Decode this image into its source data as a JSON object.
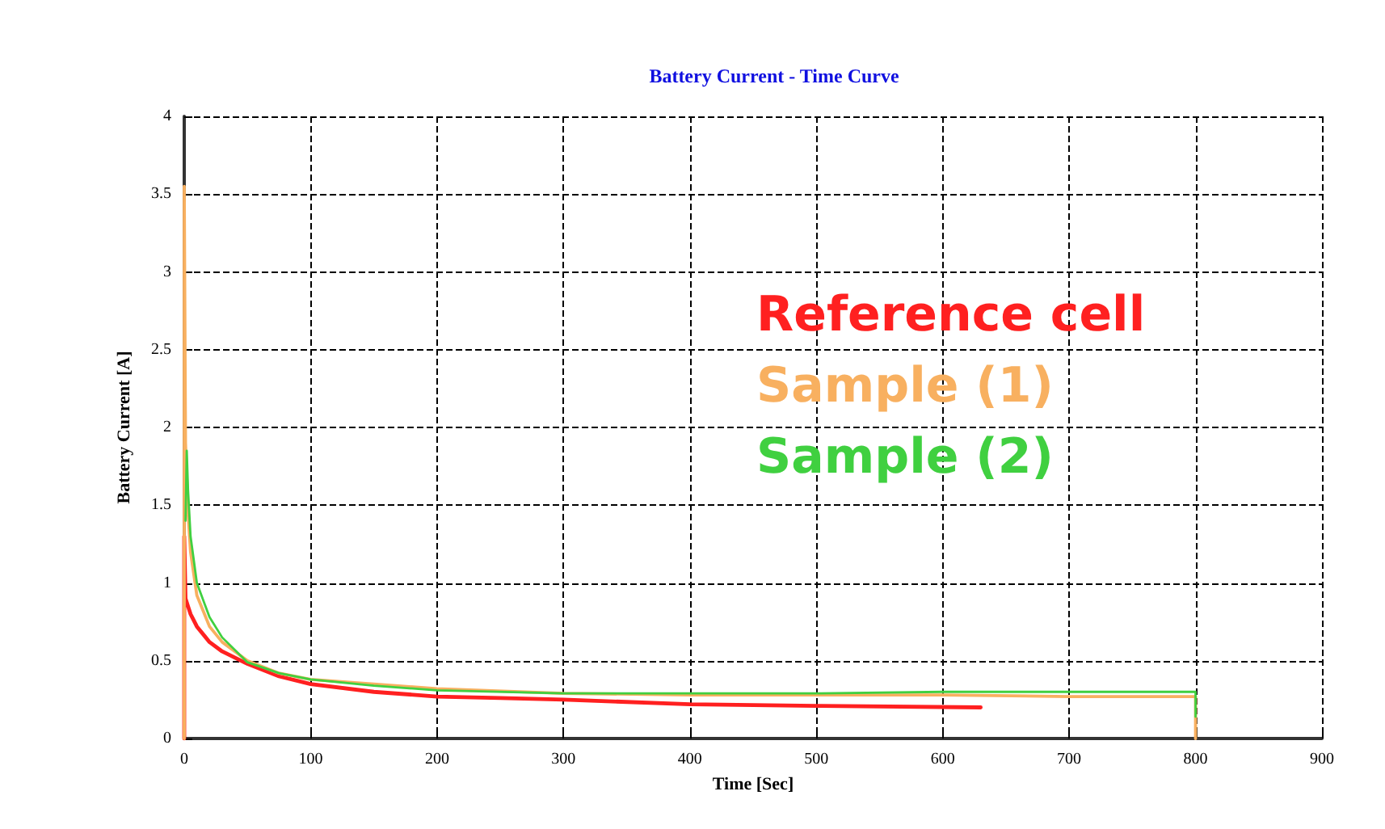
{
  "chart_data": {
    "type": "line",
    "title": "Battery Current - Time Curve",
    "xlabel": "Time [Sec]",
    "ylabel": "Battery Current [A]",
    "xlim": [
      0,
      900
    ],
    "xticks": [
      0,
      100,
      200,
      300,
      400,
      500,
      600,
      700,
      800,
      900
    ],
    "ylim": [
      0,
      4
    ],
    "yticks": [
      0,
      0.5,
      1,
      1.5,
      2,
      2.5,
      3,
      3.5,
      4
    ],
    "grid": true,
    "legend": "right",
    "marker": "none",
    "line_style": "solid",
    "series": [
      {
        "name": "Reference cell",
        "color": "#ff2020",
        "x": [
          0,
          0,
          1,
          3,
          5,
          10,
          20,
          30,
          50,
          75,
          100,
          150,
          200,
          250,
          300,
          400,
          500,
          630
        ],
        "values": [
          0,
          1.3,
          0.9,
          0.85,
          0.8,
          0.72,
          0.62,
          0.56,
          0.48,
          0.4,
          0.35,
          0.3,
          0.27,
          0.26,
          0.25,
          0.22,
          0.21,
          0.2
        ]
      },
      {
        "name": "Sample (1)",
        "color": "#f8b060",
        "x": [
          0,
          0,
          1,
          3,
          5,
          10,
          20,
          30,
          50,
          75,
          100,
          150,
          200,
          300,
          400,
          500,
          600,
          700,
          800,
          800
        ],
        "values": [
          0,
          3.55,
          1.9,
          1.45,
          1.2,
          0.92,
          0.72,
          0.62,
          0.5,
          0.42,
          0.38,
          0.35,
          0.32,
          0.29,
          0.28,
          0.28,
          0.28,
          0.27,
          0.27,
          0
        ]
      },
      {
        "name": "Sample (2)",
        "color": "#40d040",
        "x": [
          1,
          2,
          3,
          5,
          10,
          20,
          30,
          50,
          75,
          100,
          150,
          200,
          300,
          400,
          500,
          600,
          700,
          800,
          800
        ],
        "values": [
          1.4,
          1.85,
          1.6,
          1.3,
          1.0,
          0.78,
          0.65,
          0.49,
          0.42,
          0.38,
          0.34,
          0.31,
          0.29,
          0.29,
          0.29,
          0.3,
          0.3,
          0.3,
          0.14
        ]
      }
    ]
  }
}
